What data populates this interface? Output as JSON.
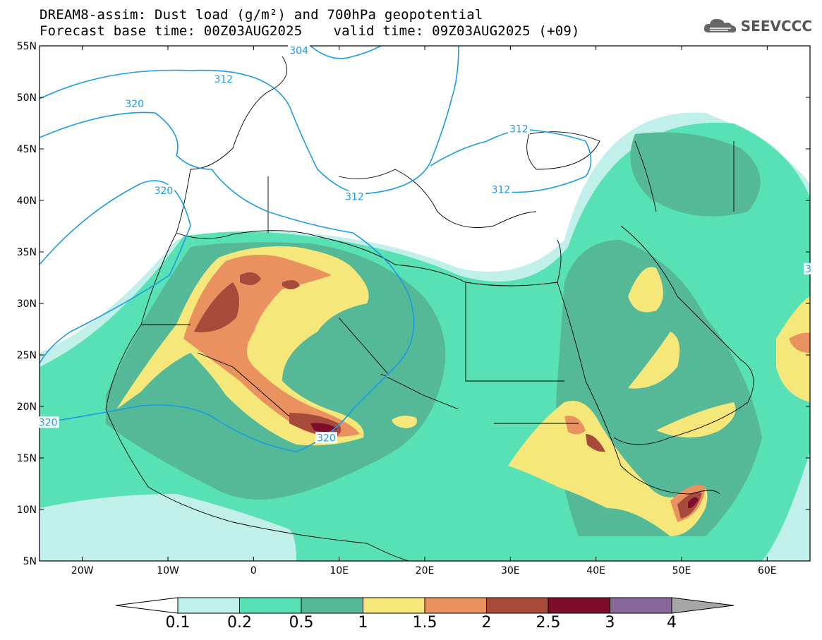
{
  "title": {
    "line1": "DREAM8-assim: Dust load (g/m²) and 700hPa geopotential",
    "base_time": "Forecast base time: 00Z03AUG2025",
    "valid_time": "valid time: 09Z03AUG2025 (+09)"
  },
  "logo": {
    "text": "SEEVCCC",
    "icon": "cloud-icon"
  },
  "map": {
    "lon_range": [
      -25,
      65
    ],
    "lat_range": [
      5,
      55
    ],
    "lat_ticks": [
      {
        "value": 55,
        "label": "55N"
      },
      {
        "value": 50,
        "label": "50N"
      },
      {
        "value": 45,
        "label": "45N"
      },
      {
        "value": 40,
        "label": "40N"
      },
      {
        "value": 35,
        "label": "35N"
      },
      {
        "value": 30,
        "label": "30N"
      },
      {
        "value": 25,
        "label": "25N"
      },
      {
        "value": 20,
        "label": "20N"
      },
      {
        "value": 15,
        "label": "15N"
      },
      {
        "value": 10,
        "label": "10N"
      },
      {
        "value": 5,
        "label": "5N"
      }
    ],
    "lon_ticks": [
      {
        "value": -20,
        "label": "20W"
      },
      {
        "value": -10,
        "label": "10W"
      },
      {
        "value": 0,
        "label": "0"
      },
      {
        "value": 10,
        "label": "10E"
      },
      {
        "value": 20,
        "label": "20E"
      },
      {
        "value": 30,
        "label": "30E"
      },
      {
        "value": 40,
        "label": "40E"
      },
      {
        "value": 50,
        "label": "50E"
      },
      {
        "value": 60,
        "label": "60E"
      }
    ],
    "contour_labels": [
      {
        "text": "304",
        "lon": 5.3,
        "lat": 54.5
      },
      {
        "text": "312",
        "lon": -3.5,
        "lat": 51.7
      },
      {
        "text": "320",
        "lon": -13.9,
        "lat": 49.3
      },
      {
        "text": "312",
        "lon": 31.0,
        "lat": 46.9
      },
      {
        "text": "320",
        "lon": -10.5,
        "lat": 40.9
      },
      {
        "text": "312",
        "lon": 11.8,
        "lat": 40.3
      },
      {
        "text": "312",
        "lon": 28.9,
        "lat": 41.0
      },
      {
        "text": "320",
        "lon": -24.0,
        "lat": 18.4
      },
      {
        "text": "320",
        "lon": 8.5,
        "lat": 16.9
      },
      {
        "text": "3",
        "lon": 64.8,
        "lat": 33.3
      }
    ]
  },
  "colorbar": {
    "labels": [
      "0.1",
      "0.2",
      "0.5",
      "1",
      "1.5",
      "2",
      "2.5",
      "3",
      "4"
    ],
    "colors": [
      "#ffffff",
      "#c1efe9",
      "#58e1b4",
      "#55b997",
      "#f5e77a",
      "#e9915f",
      "#a74a3c",
      "#7c0d2c",
      "#876899",
      "#a6a6a6"
    ]
  }
}
